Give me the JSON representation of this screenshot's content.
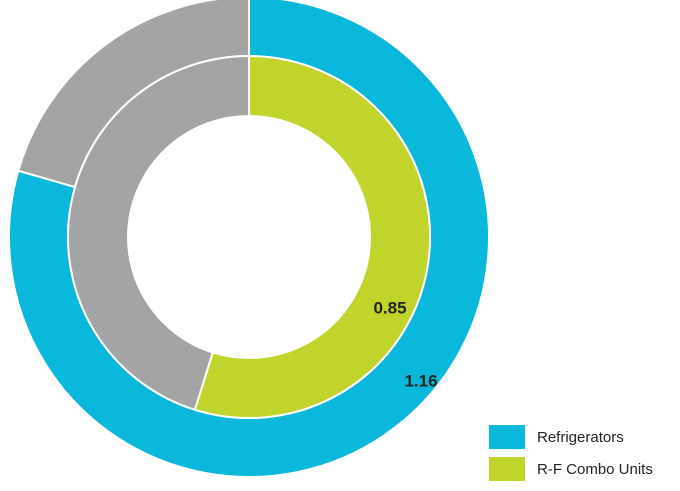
{
  "chart_data": {
    "type": "pie",
    "title": "",
    "series": [
      {
        "name": "Refrigerators",
        "ring": "outer",
        "value": 1.16,
        "color": "#09B8DA",
        "remainder_value": 0.3,
        "remainder_color": "#A4A4A4",
        "show_label": true
      },
      {
        "name": "R-F Combo Units",
        "ring": "inner",
        "value": 0.85,
        "color": "#C0D42C",
        "remainder_value": 0.7,
        "remainder_color": "#A4A4A4",
        "show_label": true
      }
    ],
    "legend": {
      "position": "bottom-right",
      "entries": [
        "Refrigerators",
        "R-F Combo Units"
      ]
    }
  }
}
